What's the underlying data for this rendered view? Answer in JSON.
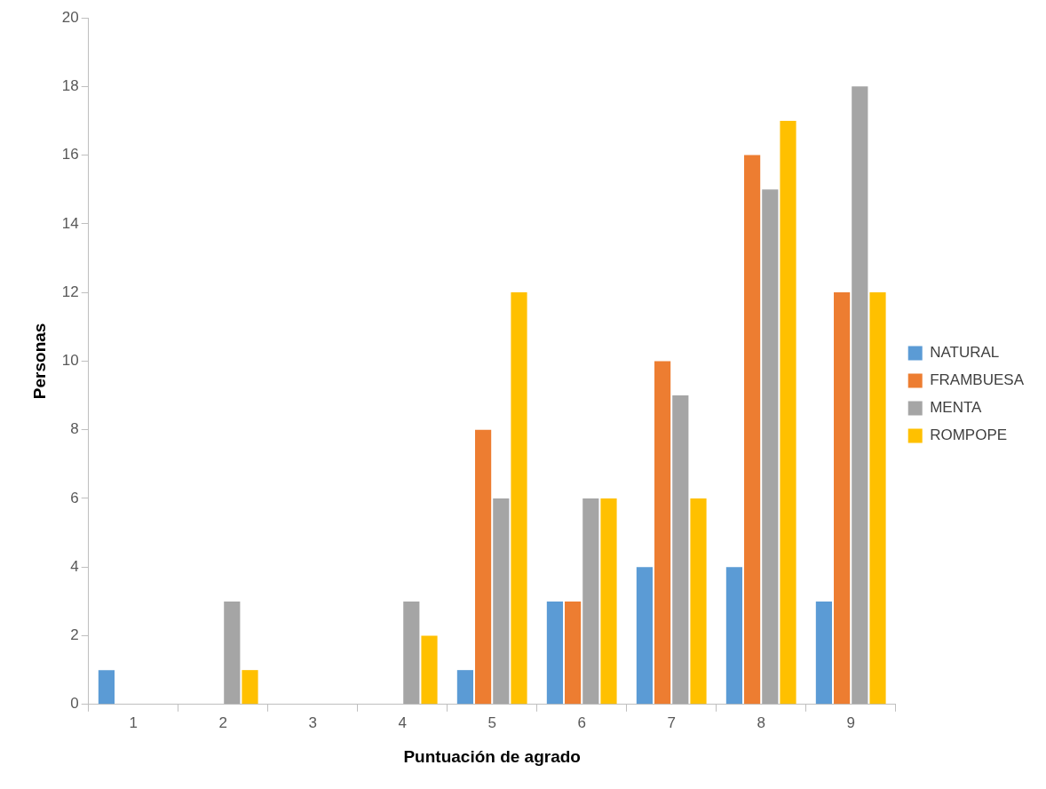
{
  "chart_data": {
    "type": "bar",
    "xlabel": "Puntuación de agrado",
    "ylabel": "Personas",
    "categories": [
      "1",
      "2",
      "3",
      "4",
      "5",
      "6",
      "7",
      "8",
      "9"
    ],
    "series": [
      {
        "name": "NATURAL",
        "color": "#5b9bd5",
        "values": [
          1,
          0,
          0,
          0,
          1,
          3,
          4,
          4,
          3
        ]
      },
      {
        "name": "FRAMBUESA",
        "color": "#ed7d31",
        "values": [
          0,
          0,
          0,
          0,
          8,
          3,
          10,
          16,
          12
        ]
      },
      {
        "name": "MENTA",
        "color": "#a5a5a5",
        "values": [
          0,
          3,
          0,
          3,
          6,
          6,
          9,
          15,
          18
        ]
      },
      {
        "name": "ROMPOPE",
        "color": "#ffc000",
        "values": [
          0,
          1,
          0,
          2,
          12,
          6,
          6,
          17,
          12
        ]
      }
    ],
    "ylim": [
      0,
      20
    ],
    "yticks": [
      0,
      2,
      4,
      6,
      8,
      10,
      12,
      14,
      16,
      18,
      20
    ],
    "grid": false,
    "legend": "right"
  }
}
